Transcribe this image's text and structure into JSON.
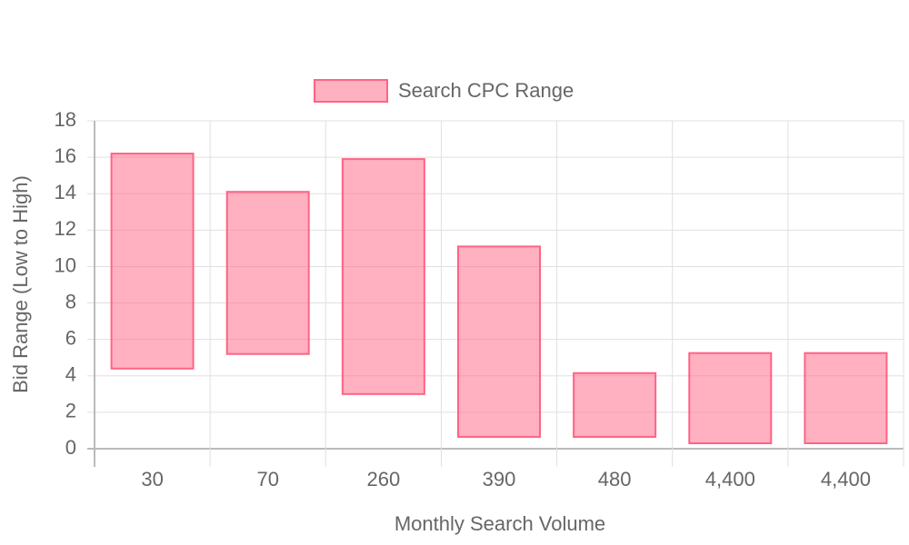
{
  "chart_data": {
    "type": "floating-bar",
    "x_label": "Monthly Search Volume",
    "y_label": "Bid Range (Low to High)",
    "categories": [
      "30",
      "70",
      "260",
      "390",
      "480",
      "4,400",
      "4,400"
    ],
    "series": [
      {
        "name": "Search CPC Range",
        "color": "#ff6384",
        "values": [
          [
            4.4,
            16.2
          ],
          [
            5.2,
            14.1
          ],
          [
            3.0,
            15.9
          ],
          [
            0.65,
            11.1
          ],
          [
            0.65,
            4.15
          ],
          [
            0.3,
            5.25
          ],
          [
            0.3,
            5.25
          ]
        ]
      }
    ],
    "ylim": [
      0,
      18
    ],
    "yticks": [
      0,
      2,
      4,
      6,
      8,
      10,
      12,
      14,
      16,
      18
    ],
    "grid": true,
    "legend": "top"
  }
}
